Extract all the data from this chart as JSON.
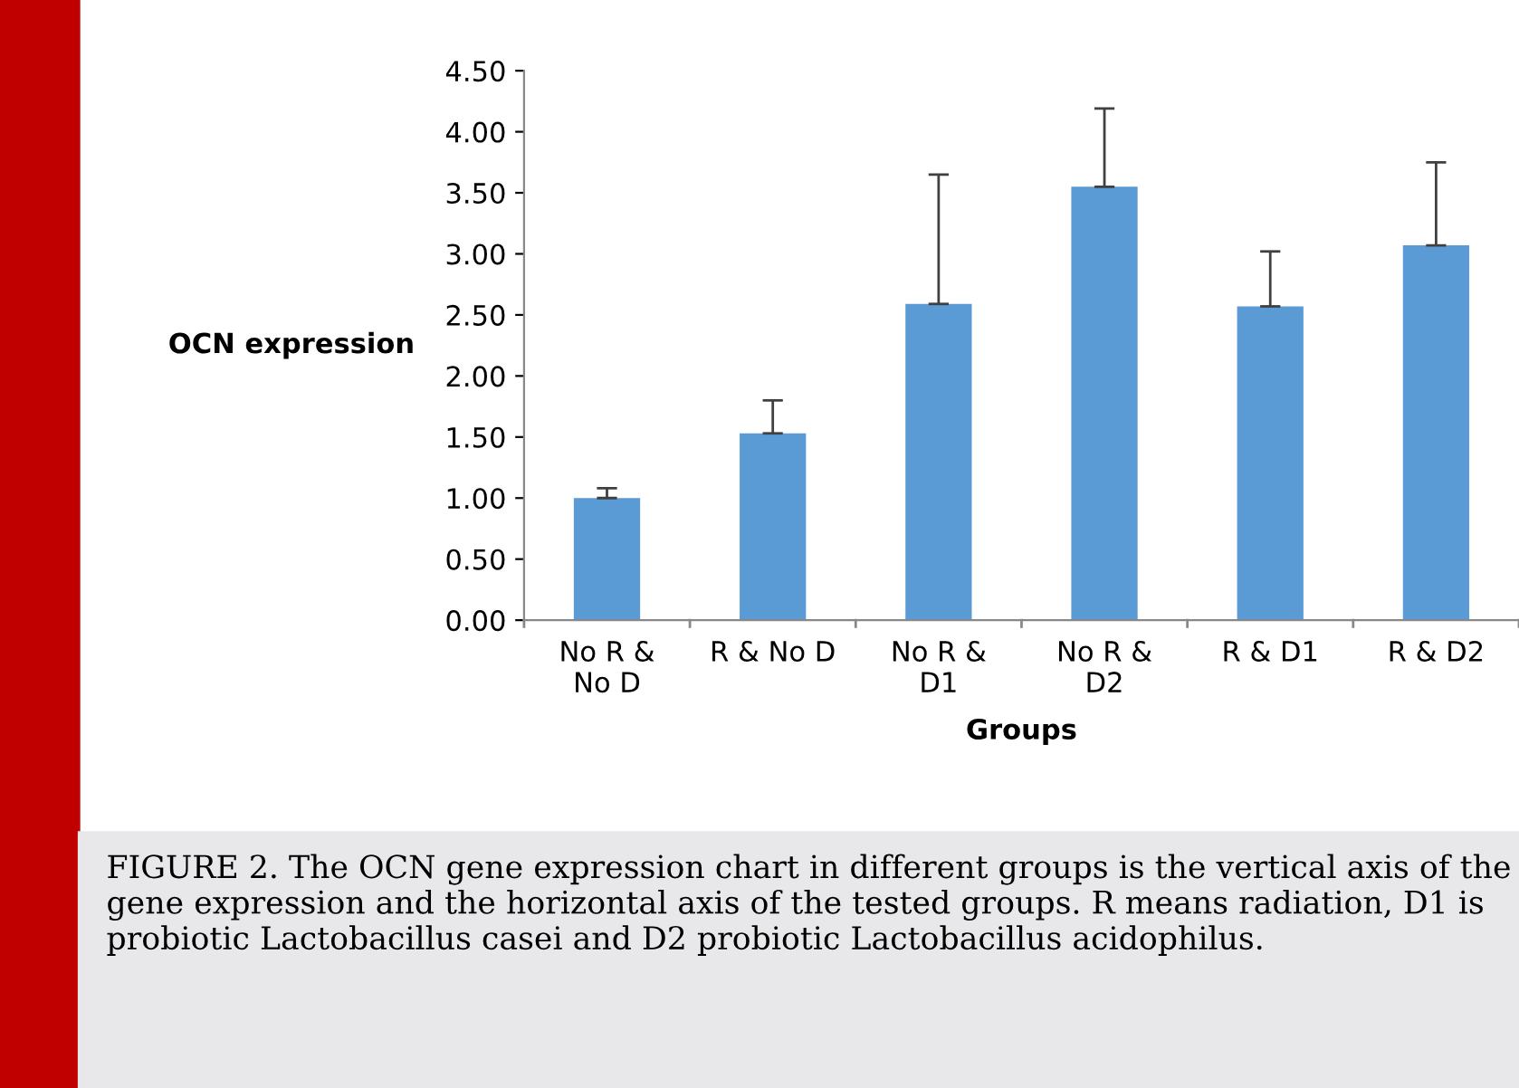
{
  "chart_data": {
    "type": "bar",
    "categories": [
      "No R &\nNo D",
      "R & No D",
      "No R &\nD1",
      "No R &\nD2",
      "R & D1",
      "R & D2"
    ],
    "values": [
      1.0,
      1.53,
      2.59,
      3.55,
      2.57,
      3.07
    ],
    "errors": [
      [
        1.0,
        1.08
      ],
      [
        1.53,
        1.8
      ],
      [
        2.59,
        3.65
      ],
      [
        3.55,
        4.19
      ],
      [
        2.57,
        3.02
      ],
      [
        3.07,
        3.75
      ]
    ],
    "color": "#5b9bd5",
    "xlabel": "Groups",
    "ylabel": "OCN expression",
    "ylim": [
      0,
      4.5
    ],
    "yticks": [
      {
        "value": 0,
        "label": "0.00"
      },
      {
        "value": 0.5,
        "label": "0.50"
      },
      {
        "value": 1,
        "label": "1.00"
      },
      {
        "value": 1.5,
        "label": "1.50"
      },
      {
        "value": 2,
        "label": "2.00"
      },
      {
        "value": 2.5,
        "label": "2.50"
      },
      {
        "value": 3,
        "label": "3.00"
      },
      {
        "value": 3.5,
        "label": "3.50"
      },
      {
        "value": 4,
        "label": "4.00"
      },
      {
        "value": 4.5,
        "label": "4.50"
      }
    ],
    "grid": false,
    "legend": false,
    "annotations": [
      "FIGURE 2. The OCN gene expression chart in different groups is the vertical axis of the gene expression and the horizontal axis of the tested groups. R means radiation, D1 is probiotic Lactobacillus casei and D2 probiotic Lactobacillus acidophilus."
    ]
  }
}
